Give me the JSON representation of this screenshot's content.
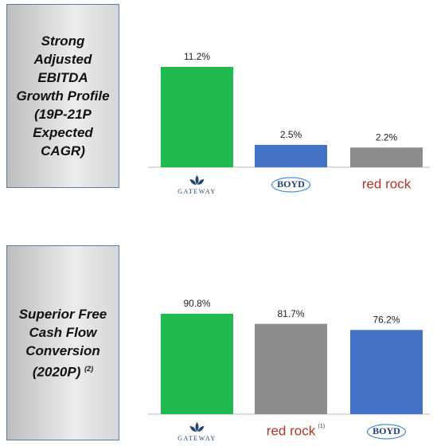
{
  "chart_data": [
    {
      "type": "bar",
      "title": "Strong Adjusted EBITDA Growth Profile (19P-21P Expected CAGR)",
      "categories": [
        "GATEWAY",
        "BOYD",
        "red rock"
      ],
      "category_notes": [
        null,
        null,
        null
      ],
      "values": [
        11.2,
        2.5,
        2.2
      ],
      "value_labels": [
        "11.2%",
        "2.5%",
        "2.2%"
      ],
      "colors": [
        "#1fba4f",
        "#4472c4",
        "#8c8c8c"
      ]
    },
    {
      "type": "bar",
      "title": "Superior Free Cash Flow Conversion (2020P)",
      "title_note": "(2)",
      "categories": [
        "GATEWAY",
        "red rock",
        "BOYD"
      ],
      "category_notes": [
        null,
        "(1)",
        null
      ],
      "values": [
        90.8,
        81.7,
        76.2
      ],
      "value_labels": [
        "90.8%",
        "81.7%",
        "76.2%"
      ],
      "colors": [
        "#1fba4f",
        "#8c8c8c",
        "#4472c4"
      ]
    }
  ]
}
